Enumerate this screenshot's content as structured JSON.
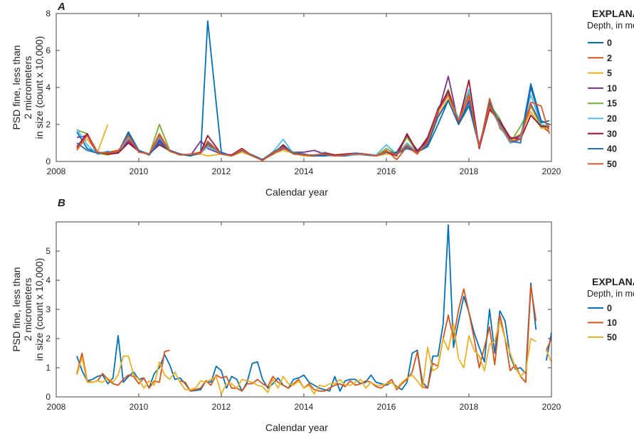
{
  "chart_data": [
    {
      "type": "line",
      "panel_label": "A",
      "xlabel": "Calendar year",
      "ylabel_lines": [
        "PSD fine, less than",
        "2 micrometers",
        "in size (count x 10,000)"
      ],
      "xlim": [
        2008,
        2020
      ],
      "ylim": [
        0,
        8
      ],
      "xticks": [
        2008,
        2010,
        2012,
        2014,
        2016,
        2018,
        2020
      ],
      "yticks": [
        0,
        2,
        4,
        6,
        8
      ],
      "grid": false,
      "legend": {
        "placement": "right",
        "title": "EXPLANATION",
        "subtitle": "Depth, in meters"
      },
      "x": [
        2008.5,
        2008.75,
        2009.0,
        2009.25,
        2009.5,
        2009.75,
        2010.0,
        2010.25,
        2010.5,
        2010.75,
        2011.0,
        2011.25,
        2011.5,
        2011.67,
        2012.0,
        2012.25,
        2012.5,
        2012.75,
        2013.0,
        2013.25,
        2013.5,
        2013.75,
        2014.0,
        2014.25,
        2014.5,
        2014.75,
        2015.0,
        2015.25,
        2015.5,
        2015.75,
        2016.0,
        2016.25,
        2016.5,
        2016.75,
        2017.0,
        2017.25,
        2017.5,
        2017.75,
        2018.0,
        2018.25,
        2018.5,
        2018.75,
        2019.0,
        2019.25,
        2019.5,
        2019.75,
        2019.95
      ],
      "series": [
        {
          "name": "0",
          "color": "#0072BD",
          "values": [
            1.6,
            0.7,
            0.5,
            0.45,
            0.5,
            1.6,
            0.6,
            0.35,
            1.2,
            0.6,
            0.4,
            0.35,
            0.4,
            7.6,
            0.5,
            0.3,
            0.6,
            0.35,
            0.1,
            0.4,
            0.7,
            0.5,
            0.4,
            0.3,
            0.3,
            0.35,
            0.3,
            0.4,
            0.35,
            0.3,
            0.5,
            0.4,
            0.7,
            0.5,
            0.8,
            2.0,
            3.3,
            2.0,
            3.0,
            0.8,
            3.2,
            2.0,
            1.0,
            1.2,
            4.2,
            2.2,
            2.0
          ]
        },
        {
          "name": "2",
          "color": "#D95319",
          "values": [
            0.7,
            1.5,
            0.45,
            0.5,
            0.6,
            1.2,
            0.55,
            0.4,
            1.5,
            0.55,
            0.35,
            0.4,
            0.5,
            0.9,
            0.4,
            0.35,
            0.7,
            0.3,
            0.05,
            0.5,
            0.8,
            0.4,
            0.35,
            0.35,
            0.4,
            0.3,
            0.35,
            0.45,
            0.4,
            0.35,
            0.6,
            0.1,
            0.8,
            0.4,
            1.2,
            2.8,
            3.6,
            2.2,
            3.5,
            0.7,
            3.4,
            1.8,
            1.2,
            1.3,
            3.0,
            1.9,
            1.6
          ]
        },
        {
          "name": "5",
          "color": "#EDB120",
          "values": [
            0.8,
            1.2,
            0.5,
            2.0,
            null,
            null,
            null,
            null,
            0.9,
            0.55,
            0.35,
            0.35,
            0.4,
            0.3,
            0.4,
            0.3,
            0.5,
            0.3,
            0.05,
            0.4,
            0.6,
            0.45,
            0.3,
            0.3,
            0.4,
            0.35,
            0.3,
            0.4,
            0.4,
            0.3,
            0.4,
            0.4,
            0.9,
            0.5,
            1.0,
            2.5,
            3.4,
            2.1,
            3.6,
            0.8,
            3.0,
            2.0,
            1.1,
            1.5,
            2.7,
            1.8,
            1.8
          ]
        },
        {
          "name": "10",
          "color": "#7E2F8E",
          "values": [
            1.3,
            1.4,
            0.4,
            0.45,
            0.5,
            1.1,
            0.6,
            0.4,
            1.1,
            0.6,
            0.4,
            0.3,
            1.1,
            0.7,
            0.4,
            0.3,
            0.6,
            0.3,
            0.1,
            0.45,
            0.7,
            0.5,
            0.5,
            0.6,
            0.4,
            0.35,
            0.4,
            0.45,
            0.4,
            0.3,
            0.5,
            0.5,
            1.4,
            0.6,
            1.1,
            2.6,
            4.6,
            2.0,
            3.3,
            0.9,
            2.9,
            2.1,
            1.2,
            1.4,
            3.1,
            2.0,
            1.8
          ]
        },
        {
          "name": "15",
          "color": "#77AC30",
          "values": [
            1.7,
            1.5,
            0.45,
            0.35,
            0.5,
            1.4,
            0.55,
            0.35,
            2.0,
            0.6,
            0.35,
            0.35,
            0.5,
            1.0,
            0.4,
            0.3,
            0.6,
            0.35,
            0.1,
            0.45,
            0.8,
            0.5,
            0.35,
            0.3,
            0.4,
            0.3,
            0.35,
            0.4,
            0.35,
            0.3,
            0.7,
            0.4,
            1.3,
            0.5,
            1.0,
            2.7,
            3.9,
            2.2,
            3.7,
            0.8,
            3.1,
            2.3,
            1.0,
            1.9,
            3.0,
            1.9,
            1.8
          ]
        },
        {
          "name": "20",
          "color": "#4DBEEE",
          "values": [
            1.75,
            0.9,
            0.4,
            0.55,
            0.45,
            1.3,
            0.6,
            0.4,
            1.3,
            0.6,
            0.4,
            0.35,
            0.45,
            0.8,
            0.45,
            0.3,
            0.7,
            0.3,
            0.1,
            0.5,
            1.2,
            0.4,
            0.4,
            0.3,
            0.5,
            0.35,
            0.3,
            0.35,
            0.4,
            0.35,
            0.9,
            0.4,
            1.0,
            0.5,
            1.0,
            2.9,
            3.7,
            2.3,
            3.9,
            0.8,
            3.0,
            1.9,
            1.0,
            1.3,
            3.6,
            2.0,
            1.9
          ]
        },
        {
          "name": "30",
          "color": "#A2142F",
          "values": [
            0.8,
            1.5,
            0.5,
            0.4,
            0.45,
            1.0,
            0.55,
            0.4,
            0.9,
            0.6,
            0.4,
            0.3,
            0.5,
            1.4,
            0.4,
            0.35,
            0.7,
            0.3,
            0.1,
            0.4,
            0.9,
            0.4,
            0.35,
            0.3,
            0.45,
            0.35,
            0.4,
            0.4,
            0.4,
            0.3,
            0.5,
            0.3,
            1.5,
            0.5,
            1.3,
            2.8,
            3.8,
            2.1,
            4.4,
            0.7,
            2.8,
            2.2,
            1.3,
            1.2,
            2.5,
            1.9,
            1.9
          ]
        },
        {
          "name": "40",
          "color": "#1f69ad",
          "values": [
            1.0,
            0.6,
            0.45,
            0.5,
            0.5,
            1.5,
            0.6,
            0.35,
            1.0,
            0.6,
            0.4,
            0.3,
            0.45,
            1.0,
            0.45,
            0.3,
            0.6,
            0.35,
            0.1,
            0.5,
            0.8,
            0.45,
            0.4,
            0.3,
            0.35,
            0.3,
            0.3,
            0.45,
            0.35,
            0.3,
            0.5,
            0.45,
            0.8,
            0.5,
            0.9,
            2.4,
            3.3,
            2.0,
            3.2,
            0.8,
            3.1,
            2.1,
            1.1,
            1.0,
            4.0,
            2.1,
            2.2
          ]
        },
        {
          "name": "50",
          "color": "#E0582A",
          "values": [
            0.6,
            1.4,
            0.5,
            0.45,
            0.55,
            1.4,
            0.5,
            0.4,
            1.4,
            0.55,
            0.35,
            0.4,
            0.45,
            1.1,
            0.4,
            0.3,
            0.65,
            0.3,
            0.05,
            0.45,
            0.75,
            0.4,
            0.35,
            0.35,
            0.4,
            0.3,
            0.35,
            0.4,
            0.4,
            0.3,
            0.55,
            0.35,
            0.9,
            0.45,
            1.0,
            2.7,
            3.6,
            2.2,
            3.6,
            0.8,
            3.0,
            2.0,
            1.1,
            1.2,
            3.2,
            3.0,
            1.5
          ]
        }
      ]
    },
    {
      "type": "line",
      "panel_label": "B",
      "xlabel": "Calendar year",
      "ylabel_lines": [
        "PSD fine, less than",
        "2 micrometers",
        "in size (count x 10,000)"
      ],
      "xlim": [
        2008,
        2020
      ],
      "ylim": [
        0,
        6
      ],
      "xticks": [
        2008,
        2010,
        2012,
        2014,
        2016,
        2018,
        2020
      ],
      "yticks": [
        0,
        1,
        2,
        3,
        4,
        5
      ],
      "grid": false,
      "legend": {
        "placement": "right",
        "title": "EXPLANATION",
        "subtitle": "Depth, in meters"
      },
      "x_start": 2008.5,
      "x_step": 0.125,
      "series": [
        {
          "name": "0",
          "color": "#0072BD",
          "values": [
            1.4,
            0.9,
            0.55,
            0.6,
            0.7,
            0.75,
            0.45,
            0.65,
            2.1,
            0.5,
            0.7,
            0.85,
            0.6,
            0.65,
            0.3,
            0.8,
            1.0,
            1.45,
            1.1,
            0.6,
            0.65,
            0.45,
            0.2,
            0.22,
            0.25,
            0.55,
            0.5,
            1.05,
            0.9,
            0.3,
            0.7,
            0.6,
            0.2,
            0.5,
            1.15,
            1.2,
            0.6,
            0.3,
            0.45,
            0.65,
            0.4,
            0.3,
            0.6,
            0.65,
            0.75,
            0.5,
            0.4,
            0.3,
            0.25,
            0.2,
            0.7,
            0.2,
            0.55,
            0.6,
            0.6,
            0.45,
            0.5,
            0.75,
            0.5,
            0.45,
            0.4,
            0.5,
            0.35,
            0.25,
            0.5,
            1.5,
            1.6,
            0.5,
            0.3,
            1.4,
            1.4,
            2.5,
            5.9,
            1.7,
            2.6,
            3.45,
            2.9,
            2.2,
            1.7,
            1.2,
            3.0,
            1.5,
            2.95,
            2.6,
            1.4,
            0.95,
            1.0,
            0.8,
            3.9,
            2.3,
            null,
            1.25,
            2.2
          ]
        },
        {
          "name": "10",
          "color": "#D95319",
          "values": [
            0.8,
            1.5,
            0.55,
            0.5,
            0.55,
            0.8,
            0.6,
            0.45,
            0.4,
            0.6,
            0.75,
            0.7,
            0.45,
            0.65,
            0.3,
            0.55,
            0.5,
            1.55,
            1.6,
            null,
            0.55,
            0.5,
            0.2,
            0.25,
            0.3,
            0.55,
            0.4,
            0.75,
            0.65,
            0.7,
            0.3,
            0.3,
            0.2,
            0.45,
            0.45,
            0.6,
            0.45,
            0.35,
            0.7,
            0.5,
            0.4,
            0.3,
            0.45,
            0.6,
            0.3,
            0.45,
            0.25,
            0.2,
            0.2,
            0.3,
            0.4,
            0.45,
            0.35,
            0.55,
            0.4,
            0.45,
            0.55,
            0.5,
            0.35,
            0.3,
            0.45,
            0.6,
            0.25,
            0.45,
            0.6,
            0.85,
            1.55,
            0.35,
            0.3,
            1.15,
            1.05,
            2.0,
            2.8,
            2.0,
            3.0,
            3.7,
            2.9,
            2.0,
            1.0,
            1.7,
            2.4,
            1.1,
            2.8,
            2.0,
            0.9,
            1.1,
            0.7,
            0.5,
            3.8,
            2.6,
            null,
            1.6,
            2.0
          ]
        },
        {
          "name": "50",
          "color": "#EDB120",
          "values": [
            0.75,
            1.35,
            0.5,
            0.5,
            0.55,
            0.5,
            0.65,
            0.5,
            0.75,
            1.4,
            1.4,
            0.75,
            0.6,
            0.3,
            0.55,
            0.4,
            1.2,
            0.75,
            0.6,
            0.85,
            0.5,
            0.25,
            0.25,
            0.3,
            0.55,
            0.5,
            0.6,
            0.7,
            0.1,
            0.45,
            0.45,
            0.3,
            0.6,
            0.55,
            0.5,
            0.4,
            0.35,
            0.15,
            0.6,
            0.3,
            0.7,
            0.45,
            0.4,
            0.55,
            0.3,
            0.4,
            0.1,
            0.4,
            0.35,
            0.45,
            0.45,
            0.6,
            0.4,
            0.4,
            0.5,
            0.6,
            0.3,
            0.5,
            0.4,
            0.4,
            0.45,
            0.5,
            0.3,
            0.5,
            0.65,
            0.75,
            0.55,
            0.3,
            1.7,
            0.9,
            1.0,
            2.0,
            1.6,
            2.5,
            1.3,
            1.0,
            2.1,
            1.6,
            1.4,
            0.9,
            1.8,
            1.9,
            2.6,
            2.0,
            1.5,
            1.0,
            0.7,
            0.9,
            2.0,
            1.9,
            null,
            1.6,
            1.2
          ]
        }
      ]
    }
  ]
}
